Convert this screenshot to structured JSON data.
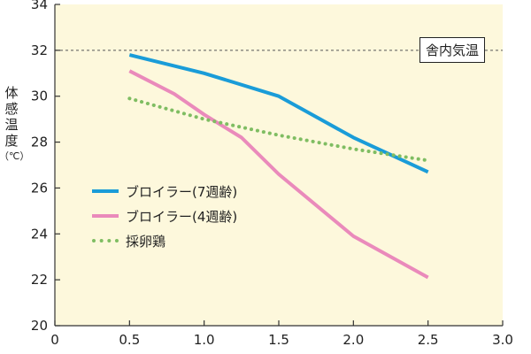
{
  "chart_data": {
    "type": "line",
    "title": "",
    "xlabel": "",
    "ylabel": "体感温度（℃）",
    "ylabel_chars": [
      "体",
      "感",
      "温",
      "度",
      "（℃）"
    ],
    "xlim": [
      0,
      3.0
    ],
    "ylim": [
      20,
      34
    ],
    "x_ticks": [
      "0",
      "0.5",
      "1.0",
      "1.5",
      "2.0",
      "2.5",
      "3.0"
    ],
    "y_ticks": [
      "20",
      "22",
      "24",
      "26",
      "28",
      "30",
      "32",
      "34"
    ],
    "plot_background": "#fdf8dc",
    "reference_line": {
      "label": "舎内気温",
      "y": 32,
      "color": "#555555",
      "style": "dashed"
    },
    "series": [
      {
        "name": "ブロイラー(7週齢)",
        "color": "#1a9cd8",
        "style": "solid",
        "x": [
          0.5,
          1.0,
          1.5,
          2.0,
          2.5
        ],
        "values": [
          31.8,
          31.0,
          30.0,
          28.2,
          26.7
        ]
      },
      {
        "name": "ブロイラー(4週齢)",
        "color": "#ea8abb",
        "style": "solid",
        "x": [
          0.5,
          0.8,
          1.0,
          1.25,
          1.5,
          2.0,
          2.5
        ],
        "values": [
          31.1,
          30.1,
          29.2,
          28.2,
          26.6,
          23.9,
          22.1
        ]
      },
      {
        "name": "採卵鶏",
        "color": "#7fbd62",
        "style": "dotted",
        "x": [
          0.5,
          1.0,
          1.5,
          2.0,
          2.5
        ],
        "values": [
          29.9,
          29.0,
          28.3,
          27.7,
          27.2
        ]
      }
    ]
  }
}
